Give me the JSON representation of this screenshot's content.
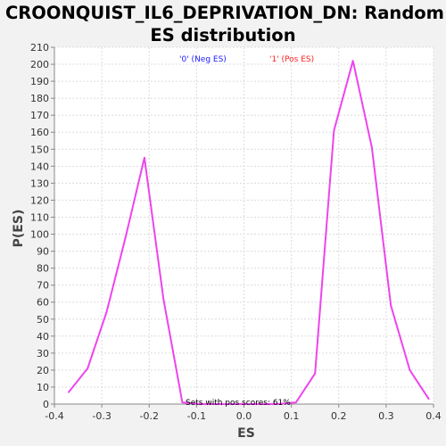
{
  "chart_data": {
    "type": "line",
    "title_lines": [
      "CROONQUIST_IL6_DEPRIVATION_DN: Random",
      "ES distribution"
    ],
    "xlabel": "ES",
    "ylabel": "P(ES)",
    "xlim": [
      -0.4,
      0.4
    ],
    "ylim": [
      0,
      210
    ],
    "x_ticks": [
      -0.4,
      -0.3,
      -0.2,
      -0.1,
      0.0,
      0.1,
      0.2,
      0.3,
      0.4
    ],
    "x_tick_labels": [
      "-0.4",
      "-0.3",
      "-0.2",
      "-0.1",
      "0.0",
      "0.1",
      "0.2",
      "0.3",
      "0.4"
    ],
    "y_ticks": [
      0,
      10,
      20,
      30,
      40,
      50,
      60,
      70,
      80,
      90,
      100,
      110,
      120,
      130,
      140,
      150,
      160,
      170,
      180,
      190,
      200,
      210
    ],
    "y_tick_labels": [
      "0",
      "10",
      "20",
      "30",
      "40",
      "50",
      "60",
      "70",
      "80",
      "90",
      "100",
      "110",
      "120",
      "130",
      "140",
      "150",
      "160",
      "170",
      "180",
      "190",
      "200",
      "210"
    ],
    "grid": true,
    "legend": [
      {
        "label": "'0' (Neg ES)",
        "color": "#1a1aff"
      },
      {
        "label": "'1' (Pos ES)",
        "color": "#ff2020"
      }
    ],
    "annotation": "Sets with pos scores: 61%",
    "series": [
      {
        "color": "#ee44ee",
        "x": [
          -0.37,
          -0.33,
          -0.29,
          -0.25,
          -0.21,
          -0.17,
          -0.13,
          -0.09,
          -0.05,
          -0.01,
          0.03,
          0.07,
          0.11,
          0.15,
          0.19,
          0.23,
          0.27,
          0.31,
          0.35,
          0.39
        ],
        "y": [
          7,
          21,
          54,
          98,
          145,
          62,
          1,
          0,
          0,
          0,
          0,
          0,
          1,
          18,
          161,
          202,
          151,
          58,
          20,
          3
        ]
      }
    ]
  }
}
